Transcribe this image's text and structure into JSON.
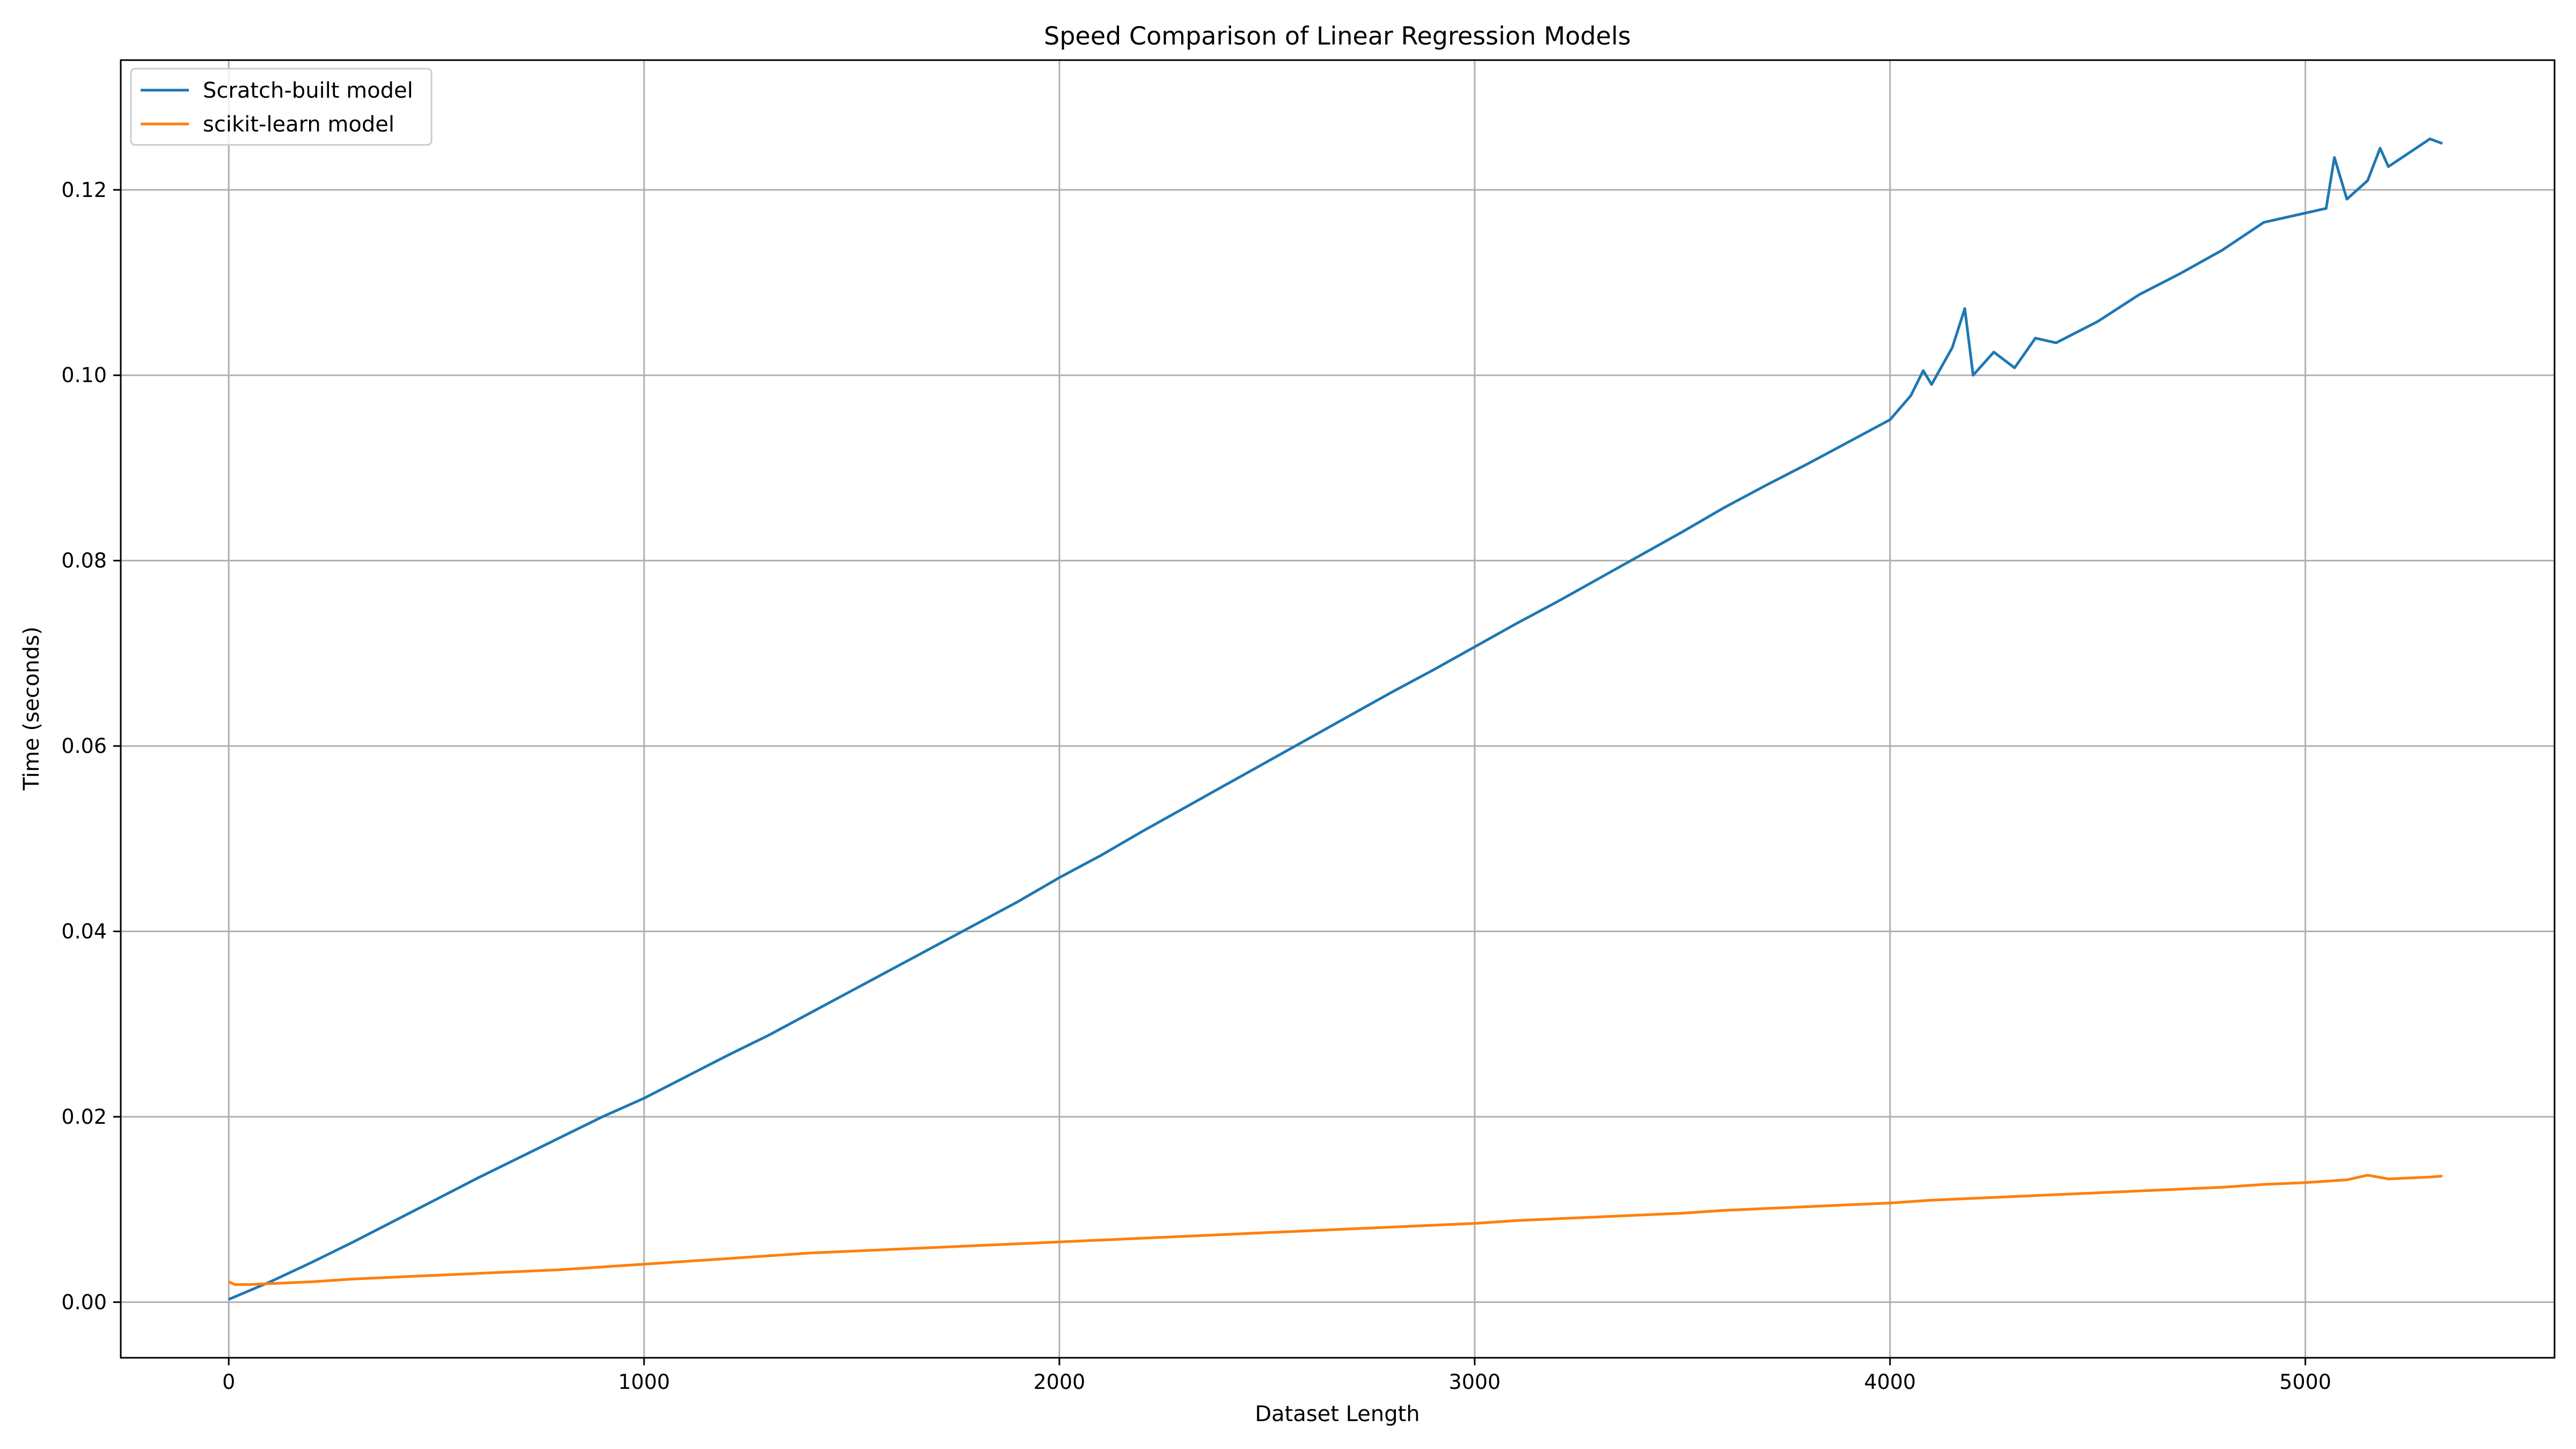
{
  "chart_data": {
    "type": "line",
    "title": "Speed Comparison of Linear Regression Models",
    "xlabel": "Dataset Length",
    "ylabel": "Time (seconds)",
    "xlim": [
      -260,
      5600
    ],
    "ylim": [
      -0.006,
      0.134
    ],
    "x_ticks": [
      0,
      1000,
      2000,
      3000,
      4000,
      5000
    ],
    "x_tick_labels": [
      "0",
      "1000",
      "2000",
      "3000",
      "4000",
      "5000"
    ],
    "y_ticks": [
      0.0,
      0.02,
      0.04,
      0.06,
      0.08,
      0.1,
      0.12
    ],
    "y_tick_labels": [
      "0.00",
      "0.02",
      "0.04",
      "0.06",
      "0.08",
      "0.10",
      "0.12"
    ],
    "grid": true,
    "legend_position": "top-left",
    "series": [
      {
        "name": "Scratch-built model",
        "color": "#1f77b4",
        "x": [
          0,
          100,
          200,
          300,
          400,
          500,
          600,
          700,
          800,
          900,
          1000,
          1100,
          1200,
          1300,
          1400,
          1500,
          1600,
          1700,
          1800,
          1900,
          2000,
          2100,
          2200,
          2300,
          2400,
          2500,
          2600,
          2700,
          2800,
          2900,
          3000,
          3100,
          3200,
          3300,
          3400,
          3500,
          3600,
          3700,
          3800,
          3900,
          4000,
          4050,
          4080,
          4100,
          4150,
          4180,
          4200,
          4250,
          4300,
          4350,
          4400,
          4500,
          4600,
          4700,
          4800,
          4900,
          5000,
          5050,
          5070,
          5100,
          5150,
          5180,
          5200,
          5250,
          5300,
          5330
        ],
        "values": [
          0.0003,
          0.0022,
          0.0043,
          0.0065,
          0.0088,
          0.0111,
          0.0134,
          0.0156,
          0.0178,
          0.02,
          0.022,
          0.0243,
          0.0266,
          0.0288,
          0.0312,
          0.0336,
          0.036,
          0.0384,
          0.0408,
          0.0432,
          0.0458,
          0.0482,
          0.0508,
          0.0533,
          0.0558,
          0.0583,
          0.0608,
          0.0633,
          0.0658,
          0.0682,
          0.0707,
          0.0732,
          0.0756,
          0.0781,
          0.0806,
          0.0831,
          0.0857,
          0.0881,
          0.0904,
          0.0928,
          0.0952,
          0.0978,
          0.1005,
          0.099,
          0.103,
          0.1072,
          0.1,
          0.1025,
          0.1008,
          0.104,
          0.1035,
          0.1058,
          0.1087,
          0.111,
          0.1135,
          0.1165,
          0.1175,
          0.118,
          0.1235,
          0.119,
          0.121,
          0.1245,
          0.1225,
          0.124,
          0.1255,
          0.125
        ]
      },
      {
        "name": "scikit-learn model",
        "color": "#ff7f0e",
        "x": [
          0,
          15,
          50,
          100,
          200,
          300,
          400,
          500,
          600,
          700,
          800,
          900,
          1000,
          1100,
          1200,
          1300,
          1400,
          1500,
          1600,
          1700,
          1800,
          1900,
          2000,
          2100,
          2200,
          2300,
          2400,
          2500,
          2600,
          2700,
          2800,
          2900,
          3000,
          3100,
          3200,
          3300,
          3400,
          3500,
          3600,
          3700,
          3800,
          3900,
          4000,
          4100,
          4200,
          4300,
          4400,
          4500,
          4600,
          4700,
          4800,
          4900,
          5000,
          5100,
          5150,
          5200,
          5300,
          5330
        ],
        "values": [
          0.0022,
          0.0019,
          0.0019,
          0.002,
          0.0022,
          0.0025,
          0.0027,
          0.0029,
          0.0031,
          0.0033,
          0.0035,
          0.0038,
          0.0041,
          0.0044,
          0.0047,
          0.005,
          0.0053,
          0.0055,
          0.0057,
          0.0059,
          0.0061,
          0.0063,
          0.0065,
          0.0067,
          0.0069,
          0.0071,
          0.0073,
          0.0075,
          0.0077,
          0.0079,
          0.0081,
          0.0083,
          0.0085,
          0.0088,
          0.009,
          0.0092,
          0.0094,
          0.0096,
          0.0099,
          0.0101,
          0.0103,
          0.0105,
          0.0107,
          0.011,
          0.0112,
          0.0114,
          0.0116,
          0.0118,
          0.012,
          0.0122,
          0.0124,
          0.0127,
          0.0129,
          0.0132,
          0.0137,
          0.0133,
          0.0135,
          0.0136
        ]
      }
    ]
  }
}
